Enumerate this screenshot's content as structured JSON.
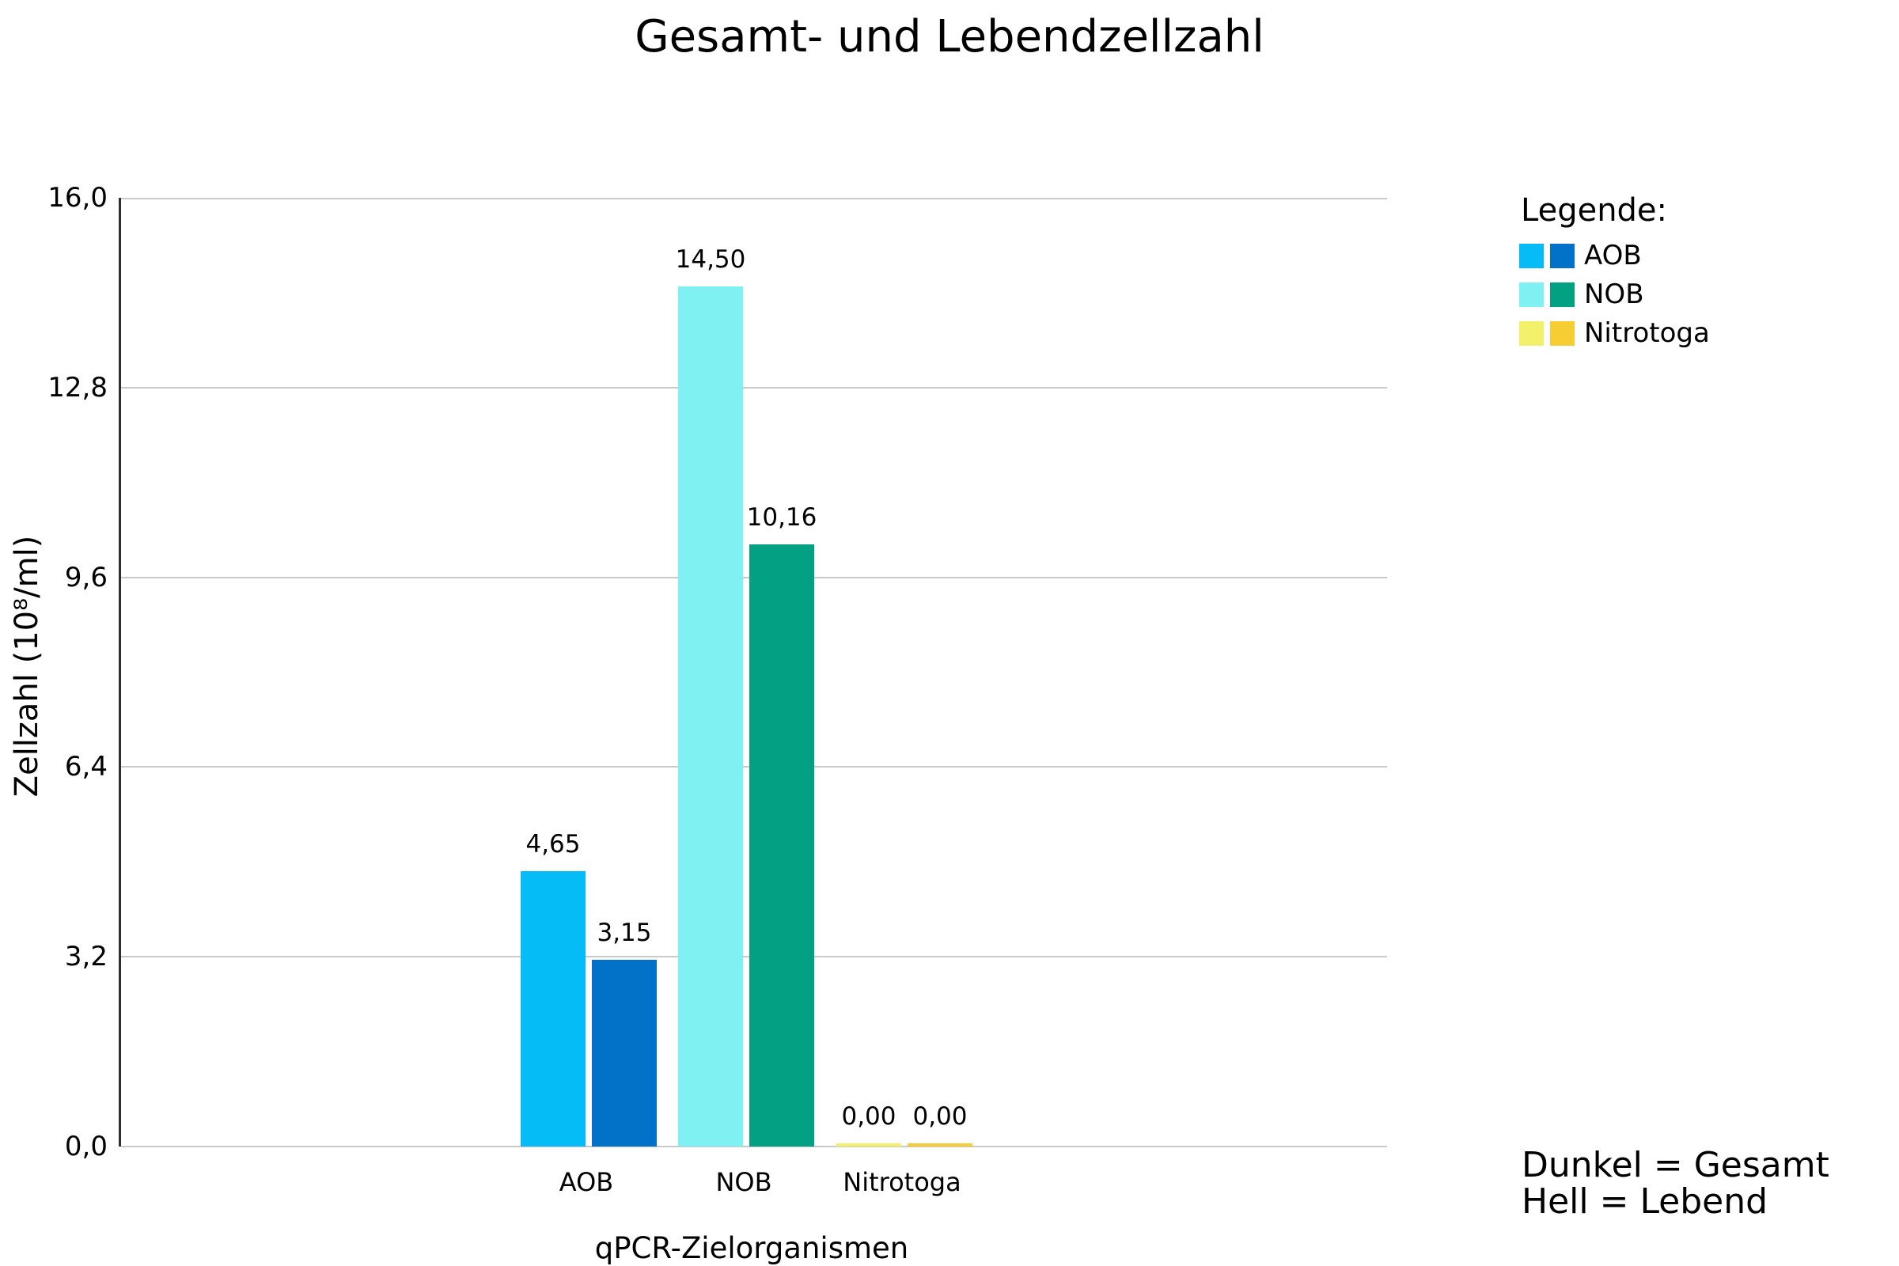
{
  "chart_data": {
    "type": "bar",
    "title": "Gesamt- und Lebendzellzahl",
    "xlabel": "qPCR-Zielorganismen",
    "ylabel": "Zellzahl (10⁸/ml)",
    "ylim": [
      0,
      16
    ],
    "ytick_values": [
      0,
      3.2,
      6.4,
      9.6,
      12.8,
      16.0
    ],
    "yticks": [
      "0,0",
      "3,2",
      "6,4",
      "9,6",
      "12,8",
      "16,0"
    ],
    "grid": "horizontal",
    "gridline_color": "#c9c9c9",
    "categories": [
      "AOB",
      "NOB",
      "Nitrotoga"
    ],
    "series": [
      {
        "name": "Lebend (hell)",
        "values": [
          4.65,
          14.5,
          0.0
        ],
        "labels": [
          "4,65",
          "14,50",
          "0,00"
        ],
        "colors": [
          "#06bcf7",
          "#80f1f2",
          "#f3f06a"
        ]
      },
      {
        "name": "Gesamt (dunkel)",
        "values": [
          3.15,
          10.16,
          0.0
        ],
        "labels": [
          "3,15",
          "10,16",
          "0,00"
        ],
        "colors": [
          "#0272c8",
          "#02a184",
          "#f6ce33"
        ]
      }
    ],
    "legend": {
      "heading": "Legende:",
      "position": "right",
      "items": [
        {
          "label": "AOB",
          "light": "#06bcf7",
          "dark": "#0272c8"
        },
        {
          "label": "NOB",
          "light": "#80f1f2",
          "dark": "#02a184"
        },
        {
          "label": "Nitrotoga",
          "light": "#f3f06a",
          "dark": "#f6ce33"
        }
      ]
    },
    "annotation": {
      "line1": "Dunkel = Gesamt",
      "line2": "Hell = Lebend"
    }
  }
}
